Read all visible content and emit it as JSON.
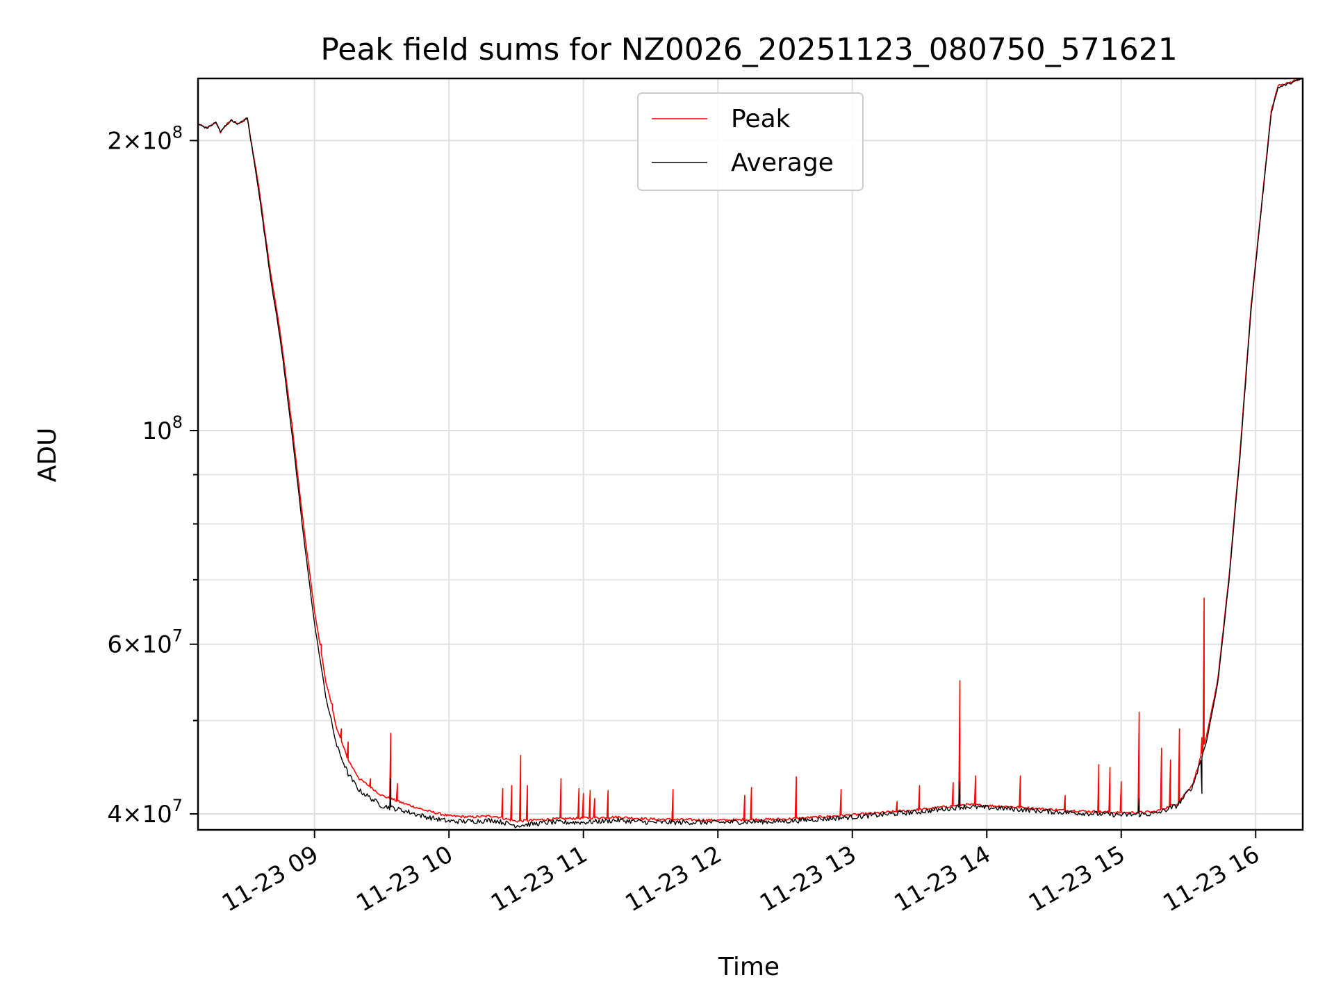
{
  "chart_data": {
    "type": "line",
    "title": "Peak field sums for NZ0026_20251123_080750_571621",
    "xlabel": "Time",
    "ylabel": "ADU",
    "yscale": "log",
    "xlim": [
      "2025-11-23 08:08",
      "2025-11-23 16:21"
    ],
    "ylim": [
      38500000,
      232000000
    ],
    "grid": true,
    "legend_position": "top-center",
    "x_ticks": [
      {
        "value": "2025-11-23 09:00",
        "label": "11-23 09"
      },
      {
        "value": "2025-11-23 10:00",
        "label": "11-23 10"
      },
      {
        "value": "2025-11-23 11:00",
        "label": "11-23 11"
      },
      {
        "value": "2025-11-23 12:00",
        "label": "11-23 12"
      },
      {
        "value": "2025-11-23 13:00",
        "label": "11-23 13"
      },
      {
        "value": "2025-11-23 14:00",
        "label": "11-23 14"
      },
      {
        "value": "2025-11-23 15:00",
        "label": "11-23 15"
      },
      {
        "value": "2025-11-23 16:00",
        "label": "11-23 16"
      }
    ],
    "y_major_ticks": [
      {
        "value": 40000000,
        "mant": "4",
        "exp": "7"
      },
      {
        "value": 60000000,
        "mant": "6",
        "exp": "7"
      },
      {
        "value": 100000000,
        "mant": "",
        "exp": "8"
      },
      {
        "value": 200000000,
        "mant": "2",
        "exp": "8"
      }
    ],
    "y_minor_ticks": [
      50000000,
      70000000,
      80000000,
      90000000
    ],
    "series": [
      {
        "name": "Peak",
        "color": "#ff0000",
        "points": [
          [
            "2025-11-23 08:08",
            208000000
          ],
          [
            "2025-11-23 08:12",
            206000000
          ],
          [
            "2025-11-23 08:16",
            209000000
          ],
          [
            "2025-11-23 08:18",
            204000000
          ],
          [
            "2025-11-23 08:20",
            207000000
          ],
          [
            "2025-11-23 08:23",
            210000000
          ],
          [
            "2025-11-23 08:26",
            208000000
          ],
          [
            "2025-11-23 08:30",
            211000000
          ],
          [
            "2025-11-23 08:35",
            180000000
          ],
          [
            "2025-11-23 08:40",
            148000000
          ],
          [
            "2025-11-23 08:45",
            125000000
          ],
          [
            "2025-11-23 08:50",
            101000000
          ],
          [
            "2025-11-23 08:55",
            80000000
          ],
          [
            "2025-11-23 09:00",
            65000000
          ],
          [
            "2025-11-23 09:05",
            55000000
          ],
          [
            "2025-11-23 09:10",
            49000000
          ],
          [
            "2025-11-23 09:15",
            45500000
          ],
          [
            "2025-11-23 09:20",
            43500000
          ],
          [
            "2025-11-23 09:30",
            41800000
          ],
          [
            "2025-11-23 09:40",
            41000000
          ],
          [
            "2025-11-23 09:50",
            40300000
          ],
          [
            "2025-11-23 10:00",
            39800000
          ],
          [
            "2025-11-23 10:10",
            39700000
          ],
          [
            "2025-11-23 10:20",
            39800000
          ],
          [
            "2025-11-23 10:30",
            39300000
          ],
          [
            "2025-11-23 10:45",
            39500000
          ],
          [
            "2025-11-23 11:00",
            39600000
          ],
          [
            "2025-11-23 11:15",
            39700000
          ],
          [
            "2025-11-23 11:30",
            39500000
          ],
          [
            "2025-11-23 12:00",
            39400000
          ],
          [
            "2025-11-23 12:30",
            39500000
          ],
          [
            "2025-11-23 13:00",
            39900000
          ],
          [
            "2025-11-23 13:30",
            40400000
          ],
          [
            "2025-11-23 13:50",
            40900000
          ],
          [
            "2025-11-23 14:10",
            40700000
          ],
          [
            "2025-11-23 14:30",
            40400000
          ],
          [
            "2025-11-23 15:00",
            40100000
          ],
          [
            "2025-11-23 15:15",
            40200000
          ],
          [
            "2025-11-23 15:25",
            41000000
          ],
          [
            "2025-11-23 15:32",
            43000000
          ],
          [
            "2025-11-23 15:38",
            48000000
          ],
          [
            "2025-11-23 15:43",
            55000000
          ],
          [
            "2025-11-23 15:48",
            70000000
          ],
          [
            "2025-11-23 15:53",
            95000000
          ],
          [
            "2025-11-23 15:58",
            135000000
          ],
          [
            "2025-11-23 16:03",
            175000000
          ],
          [
            "2025-11-23 16:07",
            215000000
          ],
          [
            "2025-11-23 16:10",
            228000000
          ],
          [
            "2025-11-23 16:21",
            232000000
          ]
        ],
        "spikes": [
          [
            "2025-11-23 09:03",
            60000000
          ],
          [
            "2025-11-23 09:08",
            52000000
          ],
          [
            "2025-11-23 09:12",
            49000000
          ],
          [
            "2025-11-23 09:15",
            47500000
          ],
          [
            "2025-11-23 09:25",
            43500000
          ],
          [
            "2025-11-23 09:34",
            48500000
          ],
          [
            "2025-11-23 09:37",
            43000000
          ],
          [
            "2025-11-23 10:24",
            42500000
          ],
          [
            "2025-11-23 10:28",
            42800000
          ],
          [
            "2025-11-23 10:32",
            46000000
          ],
          [
            "2025-11-23 10:35",
            42800000
          ],
          [
            "2025-11-23 10:50",
            43500000
          ],
          [
            "2025-11-23 10:58",
            42500000
          ],
          [
            "2025-11-23 11:00",
            42000000
          ],
          [
            "2025-11-23 11:03",
            42300000
          ],
          [
            "2025-11-23 11:05",
            41500000
          ],
          [
            "2025-11-23 11:11",
            42300000
          ],
          [
            "2025-11-23 11:40",
            42400000
          ],
          [
            "2025-11-23 12:12",
            41800000
          ],
          [
            "2025-11-23 12:15",
            42600000
          ],
          [
            "2025-11-23 12:35",
            43700000
          ],
          [
            "2025-11-23 12:55",
            42400000
          ],
          [
            "2025-11-23 13:20",
            41200000
          ],
          [
            "2025-11-23 13:30",
            42800000
          ],
          [
            "2025-11-23 13:45",
            43100000
          ],
          [
            "2025-11-23 13:48",
            55000000
          ],
          [
            "2025-11-23 13:55",
            43800000
          ],
          [
            "2025-11-23 14:15",
            43800000
          ],
          [
            "2025-11-23 14:35",
            41800000
          ],
          [
            "2025-11-23 14:50",
            45000000
          ],
          [
            "2025-11-23 14:55",
            44700000
          ],
          [
            "2025-11-23 15:00",
            43200000
          ],
          [
            "2025-11-23 15:08",
            51000000
          ],
          [
            "2025-11-23 15:18",
            46800000
          ],
          [
            "2025-11-23 15:22",
            45500000
          ],
          [
            "2025-11-23 15:26",
            49000000
          ],
          [
            "2025-11-23 15:36",
            48000000
          ],
          [
            "2025-11-23 15:37",
            67000000
          ]
        ]
      },
      {
        "name": "Average",
        "color": "#000000",
        "points": [
          [
            "2025-11-23 08:08",
            208000000
          ],
          [
            "2025-11-23 08:12",
            206000000
          ],
          [
            "2025-11-23 08:16",
            209000000
          ],
          [
            "2025-11-23 08:18",
            204000000
          ],
          [
            "2025-11-23 08:20",
            207000000
          ],
          [
            "2025-11-23 08:23",
            210000000
          ],
          [
            "2025-11-23 08:26",
            208000000
          ],
          [
            "2025-11-23 08:30",
            211000000
          ],
          [
            "2025-11-23 08:35",
            178000000
          ],
          [
            "2025-11-23 08:40",
            146000000
          ],
          [
            "2025-11-23 08:45",
            123000000
          ],
          [
            "2025-11-23 08:50",
            99000000
          ],
          [
            "2025-11-23 08:55",
            78000000
          ],
          [
            "2025-11-23 09:00",
            63000000
          ],
          [
            "2025-11-23 09:05",
            53000000
          ],
          [
            "2025-11-23 09:10",
            47000000
          ],
          [
            "2025-11-23 09:15",
            44000000
          ],
          [
            "2025-11-23 09:20",
            42300000
          ],
          [
            "2025-11-23 09:30",
            40800000
          ],
          [
            "2025-11-23 09:40",
            40300000
          ],
          [
            "2025-11-23 09:50",
            39700000
          ],
          [
            "2025-11-23 10:00",
            39300000
          ],
          [
            "2025-11-23 10:10",
            39300000
          ],
          [
            "2025-11-23 10:20",
            39400000
          ],
          [
            "2025-11-23 10:30",
            38900000
          ],
          [
            "2025-11-23 10:45",
            39200000
          ],
          [
            "2025-11-23 11:00",
            39200000
          ],
          [
            "2025-11-23 11:15",
            39400000
          ],
          [
            "2025-11-23 11:30",
            39200000
          ],
          [
            "2025-11-23 12:00",
            39200000
          ],
          [
            "2025-11-23 12:30",
            39300000
          ],
          [
            "2025-11-23 13:00",
            39700000
          ],
          [
            "2025-11-23 13:30",
            40200000
          ],
          [
            "2025-11-23 13:50",
            40700000
          ],
          [
            "2025-11-23 14:10",
            40500000
          ],
          [
            "2025-11-23 14:30",
            40200000
          ],
          [
            "2025-11-23 15:00",
            39900000
          ],
          [
            "2025-11-23 15:15",
            40000000
          ],
          [
            "2025-11-23 15:25",
            40800000
          ],
          [
            "2025-11-23 15:32",
            42800000
          ],
          [
            "2025-11-23 15:38",
            47500000
          ],
          [
            "2025-11-23 15:43",
            54500000
          ],
          [
            "2025-11-23 15:48",
            69500000
          ],
          [
            "2025-11-23 15:53",
            94000000
          ],
          [
            "2025-11-23 15:58",
            134000000
          ],
          [
            "2025-11-23 16:03",
            174000000
          ],
          [
            "2025-11-23 16:07",
            214000000
          ],
          [
            "2025-11-23 16:10",
            227000000
          ],
          [
            "2025-11-23 16:21",
            232000000
          ]
        ],
        "spikes": [
          [
            "2025-11-23 09:34",
            43500000
          ],
          [
            "2025-11-23 13:48",
            43200000
          ],
          [
            "2025-11-23 15:08",
            41500000
          ],
          [
            "2025-11-23 15:36",
            42000000
          ]
        ]
      }
    ]
  }
}
